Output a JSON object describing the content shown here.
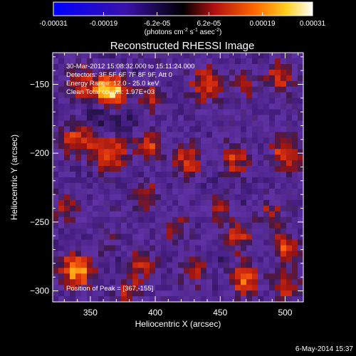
{
  "chart_data": {
    "type": "heatmap",
    "title": "Reconstructed RHESSI Image",
    "xlabel": "Heliocentric X (arcsec)",
    "ylabel": "Heliocentric Y (arcsec)",
    "xlim": [
      321,
      514
    ],
    "ylim": [
      -308,
      -127
    ],
    "x_ticks": [
      350,
      400,
      450,
      500
    ],
    "y_ticks": [
      -150,
      -200,
      -250,
      -300
    ],
    "colorbar": {
      "ticks": [
        "-0.00031",
        "-0.00019",
        "-6.2e-05",
        "6.2e-05",
        "0.00019",
        "0.00031"
      ],
      "tick_values": [
        -0.00031,
        -0.00019,
        -6.2e-05,
        6.2e-05,
        0.00019,
        0.00031
      ],
      "units_text": "(photons cm",
      "units_exp1": "-2",
      "units_mid": " s",
      "units_exp2": "-1",
      "units_tail": " asec",
      "units_exp3": "-2",
      "units_close": ")",
      "range": [
        -0.00031,
        0.00031
      ]
    },
    "annotations": [
      "30-Mar-2012 15:08:32.000 to 15:11:24.000",
      "Detectors: 3F 5F 6F 7F 8F 9F, Att 0",
      "Energy Range: 12.0 - 25.0 keV",
      "Clean    Total counts: 1.97E+03"
    ],
    "peak_label": "Position of Peak = [367,-155]",
    "peak": [
      367,
      -155
    ],
    "footer_date": "6-May-2014 15:37",
    "grid": false,
    "sources": [
      {
        "x": 367,
        "y": -155,
        "a": 1.0,
        "s": 9
      },
      {
        "x": 345,
        "y": -150,
        "a": 0.55,
        "s": 10
      },
      {
        "x": 395,
        "y": -160,
        "a": 0.45,
        "s": 8
      },
      {
        "x": 440,
        "y": -150,
        "a": 0.5,
        "s": 10
      },
      {
        "x": 470,
        "y": -150,
        "a": 0.35,
        "s": 8
      },
      {
        "x": 495,
        "y": -145,
        "a": 0.45,
        "s": 9
      },
      {
        "x": 340,
        "y": -190,
        "a": 0.55,
        "s": 10
      },
      {
        "x": 365,
        "y": -200,
        "a": 0.7,
        "s": 10
      },
      {
        "x": 395,
        "y": -195,
        "a": 0.55,
        "s": 9
      },
      {
        "x": 425,
        "y": -205,
        "a": 0.5,
        "s": 9
      },
      {
        "x": 460,
        "y": -205,
        "a": 0.45,
        "s": 9
      },
      {
        "x": 500,
        "y": -200,
        "a": 0.5,
        "s": 9
      },
      {
        "x": 395,
        "y": -230,
        "a": 0.4,
        "s": 8
      },
      {
        "x": 450,
        "y": -240,
        "a": 0.35,
        "s": 8
      },
      {
        "x": 330,
        "y": -240,
        "a": 0.35,
        "s": 8
      },
      {
        "x": 490,
        "y": -245,
        "a": 0.4,
        "s": 9
      },
      {
        "x": 465,
        "y": -260,
        "a": 0.55,
        "s": 9
      },
      {
        "x": 500,
        "y": -270,
        "a": 0.6,
        "s": 9
      },
      {
        "x": 340,
        "y": -285,
        "a": 0.75,
        "s": 10
      },
      {
        "x": 390,
        "y": -280,
        "a": 0.45,
        "s": 8
      },
      {
        "x": 430,
        "y": -285,
        "a": 0.4,
        "s": 8
      },
      {
        "x": 470,
        "y": -290,
        "a": 0.65,
        "s": 10
      },
      {
        "x": 500,
        "y": -295,
        "a": 0.55,
        "s": 8
      },
      {
        "x": 380,
        "y": -300,
        "a": 0.4,
        "s": 8
      },
      {
        "x": 415,
        "y": -255,
        "a": 0.35,
        "s": 8
      },
      {
        "x": 360,
        "y": -265,
        "a": 0.3,
        "s": 7
      }
    ]
  }
}
